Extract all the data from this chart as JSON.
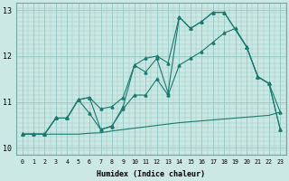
{
  "xlabel": "Humidex (Indice chaleur)",
  "background_color": "#cce8e5",
  "grid_color": "#99ccc8",
  "line_color": "#1a7a6e",
  "xlim": [
    -0.5,
    23.5
  ],
  "ylim": [
    9.85,
    13.15
  ],
  "yticks": [
    10,
    11,
    12,
    13
  ],
  "xticks": [
    0,
    1,
    2,
    3,
    4,
    5,
    6,
    7,
    8,
    9,
    10,
    11,
    12,
    13,
    14,
    15,
    16,
    17,
    18,
    19,
    20,
    21,
    22,
    23
  ],
  "line1_x": [
    0,
    1,
    2,
    3,
    4,
    5,
    6,
    7,
    8,
    9,
    10,
    11,
    12,
    13,
    14,
    15,
    16,
    17,
    18,
    19,
    20,
    21,
    22,
    23
  ],
  "line1_y": [
    10.3,
    10.3,
    10.3,
    10.3,
    10.3,
    10.3,
    10.32,
    10.33,
    10.37,
    10.4,
    10.43,
    10.46,
    10.49,
    10.52,
    10.55,
    10.57,
    10.59,
    10.61,
    10.63,
    10.65,
    10.67,
    10.69,
    10.71,
    10.78
  ],
  "line2_x": [
    0,
    1,
    2,
    3,
    4,
    5,
    6,
    7,
    8,
    9,
    10,
    11,
    12,
    13,
    14,
    15,
    16,
    17,
    18,
    19,
    20,
    21,
    22,
    23
  ],
  "line2_y": [
    10.3,
    10.3,
    10.3,
    10.65,
    10.65,
    11.05,
    10.75,
    10.4,
    10.48,
    10.85,
    11.15,
    11.15,
    11.5,
    11.15,
    11.8,
    11.95,
    12.1,
    12.3,
    12.5,
    12.6,
    12.2,
    11.55,
    11.4,
    10.78
  ],
  "line3_x": [
    0,
    2,
    3,
    4,
    5,
    6,
    7,
    8,
    9,
    10,
    11,
    12,
    13,
    14,
    15,
    16,
    17,
    18,
    20,
    21,
    22,
    23
  ],
  "line3_y": [
    10.3,
    10.3,
    10.65,
    10.65,
    11.05,
    11.1,
    10.4,
    10.47,
    10.9,
    11.8,
    11.65,
    11.95,
    11.2,
    12.85,
    12.6,
    12.75,
    12.95,
    12.95,
    12.2,
    11.55,
    11.4,
    10.4
  ],
  "line4_x": [
    0,
    1,
    2,
    3,
    4,
    5,
    6,
    7,
    8,
    9,
    10,
    11,
    12,
    13,
    14,
    15,
    16,
    17,
    18,
    20,
    21,
    22,
    23
  ],
  "line4_y": [
    10.3,
    10.3,
    10.3,
    10.65,
    10.65,
    11.05,
    11.1,
    10.85,
    10.9,
    11.1,
    11.8,
    11.95,
    12.0,
    11.85,
    12.85,
    12.6,
    12.75,
    12.95,
    12.95,
    12.2,
    11.55,
    11.4,
    10.4
  ]
}
